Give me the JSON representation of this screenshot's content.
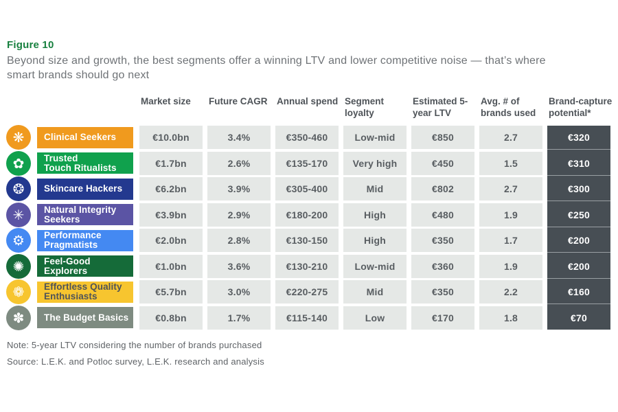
{
  "figure": {
    "label": "Figure 10",
    "title": "Beyond size and growth, the best segments offer a winning LTV and lower competitive noise — that’s where\nsmart brands should go next"
  },
  "chart_data": {
    "type": "table",
    "title": "Beyond size and growth, the best segments offer a winning LTV and lower competitive noise — that’s where smart brands should go next",
    "columns": [
      "Market size",
      "Future CAGR",
      "Annual spend",
      "Segment loyalty",
      "Estimated 5-year LTV",
      "Avg. # of brands used",
      "Brand-capture potential*"
    ],
    "rows": [
      {
        "name": "Clinical Seekers",
        "display_name": "Clinical Seekers",
        "color": "#F09A1E",
        "label_color": "#FFFFFF",
        "icon": "daisy-burst",
        "icon_glyph": "❋",
        "values": [
          "€10.0bn",
          "3.4%",
          "€350-460",
          "Low-mid",
          "€850",
          "2.7",
          "€320"
        ]
      },
      {
        "name": "Trusted Touch Ritualists",
        "display_name": "Trusted\nTouch Ritualists",
        "color": "#10A14D",
        "label_color": "#FFFFFF",
        "icon": "clover-flower",
        "icon_glyph": "✿",
        "values": [
          "€1.7bn",
          "2.6%",
          "€135-170",
          "Very high",
          "€450",
          "1.5",
          "€310"
        ]
      },
      {
        "name": "Skincare Hackers",
        "display_name": "Skincare Hackers",
        "color": "#23398F",
        "label_color": "#FFFFFF",
        "icon": "gear-flower",
        "icon_glyph": "❂",
        "values": [
          "€6.2bn",
          "3.9%",
          "€305-400",
          "Mid",
          "€802",
          "2.7",
          "€300"
        ]
      },
      {
        "name": "Natural Integrity Seekers",
        "display_name": "Natural Integrity\nSeekers",
        "color": "#5B54A4",
        "label_color": "#FFFFFF",
        "icon": "spoke-flower",
        "icon_glyph": "✳",
        "values": [
          "€3.9bn",
          "2.9%",
          "€180-200",
          "High",
          "€480",
          "1.9",
          "€250"
        ]
      },
      {
        "name": "Performance Pragmatists",
        "display_name": "Performance\nPragmatists",
        "color": "#4489F2",
        "label_color": "#FFFFFF",
        "icon": "gear",
        "icon_glyph": "⚙",
        "values": [
          "€2.0bn",
          "2.8%",
          "€130-150",
          "High",
          "€350",
          "1.7",
          "€200"
        ]
      },
      {
        "name": "Feel-Good Explorers",
        "display_name": "Feel-Good Explorers",
        "color": "#156B39",
        "label_color": "#FFFFFF",
        "icon": "gear-ring",
        "icon_glyph": "✺",
        "values": [
          "€1.0bn",
          "3.6%",
          "€130-210",
          "Low-mid",
          "€360",
          "1.9",
          "€200"
        ]
      },
      {
        "name": "Effortless Quality Enthusiasts",
        "display_name": "Effortless Quality\nEnthusiasts",
        "color": "#F7C52F",
        "label_color": "#4E5358",
        "icon": "petal-flower",
        "icon_glyph": "❁",
        "values": [
          "€5.7bn",
          "3.0%",
          "€220-275",
          "Mid",
          "€350",
          "2.2",
          "€160"
        ]
      },
      {
        "name": "The Budget Basics",
        "display_name": "The Budget Basics",
        "color": "#7E8B81",
        "label_color": "#FFFFFF",
        "icon": "five-petal-flower",
        "icon_glyph": "✽",
        "values": [
          "€0.8bn",
          "1.7%",
          "€115-140",
          "Low",
          "€170",
          "1.8",
          "€70"
        ]
      }
    ],
    "colors": {
      "cell_background": "#E5E8E6",
      "dark_column_background": "#474E54",
      "figure_label_green": "#17803F",
      "text_gray": "#585D61"
    }
  },
  "footnotes": {
    "note": "Note: 5-year LTV considering the number of brands purchased",
    "source": "Source: L.E.K. and Potloc survey, L.E.K. research and analysis"
  }
}
